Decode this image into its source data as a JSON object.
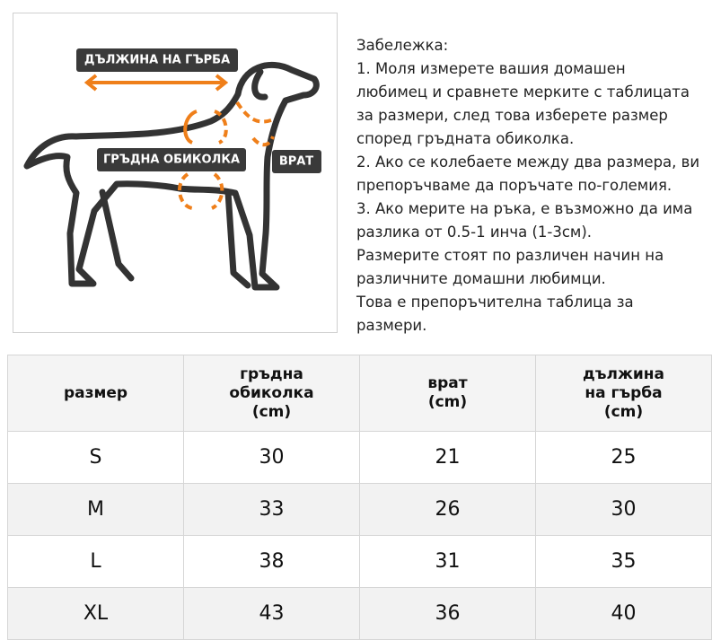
{
  "diagram": {
    "labels": {
      "back_length": "ДЪЛЖИНА НА ГЪРБА",
      "chest": "ГРЪДНА ОБИКОЛКА",
      "neck": "ВРАТ"
    }
  },
  "note": {
    "lines": [
      "Забележка:",
      "1. Моля измерете вашия домашен",
      "любимец и сравнете мерките с таблицата",
      "за размери, след това изберете размер",
      "според гръдната обиколка.",
      "2. Ако се колебаете между два размера, ви",
      "препоръчваме да поръчате по-големия.",
      "3. Ако мерите на ръка, е възможно да има",
      "разлика от 0.5-1 инча (1-3см).",
      "Размерите стоят по различен начин на",
      "различните домашни любимци.",
      "Това е препоръчителна таблица за",
      "размери."
    ]
  },
  "table": {
    "header": [
      [
        "размер"
      ],
      [
        "гръдна",
        "обиколка",
        "(cm)"
      ],
      [
        "врат",
        "(cm)"
      ],
      [
        "дължина",
        "на гърба",
        "(cm)"
      ]
    ],
    "rows": [
      [
        "S",
        30,
        21,
        25
      ],
      [
        "M",
        33,
        26,
        30
      ],
      [
        "L",
        38,
        31,
        35
      ],
      [
        "XL",
        43,
        36,
        40
      ]
    ]
  }
}
